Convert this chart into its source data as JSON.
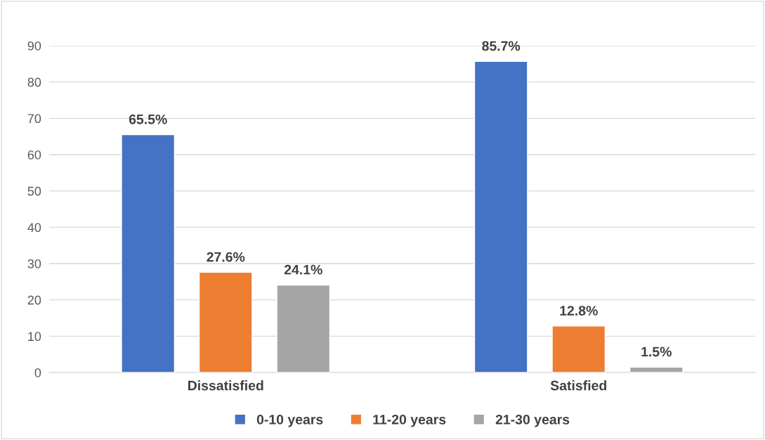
{
  "chart_data": {
    "type": "bar",
    "categories": [
      "Dissatisfied",
      "Satisfied"
    ],
    "series": [
      {
        "name": "0-10 years",
        "color": "#4472c4",
        "values": [
          65.5,
          85.7
        ],
        "value_labels": [
          "65.5%",
          "85.7%"
        ]
      },
      {
        "name": "11-20 years",
        "color": "#ed7d31",
        "values": [
          27.6,
          12.8
        ],
        "value_labels": [
          "27.6%",
          "12.8%"
        ]
      },
      {
        "name": "21-30 years",
        "color": "#a5a5a5",
        "values": [
          24.1,
          1.5
        ],
        "value_labels": [
          "24.1%",
          "1.5%"
        ]
      }
    ],
    "ylim": [
      0,
      90
    ],
    "yticks": [
      0,
      10,
      20,
      30,
      40,
      50,
      60,
      70,
      80,
      90
    ],
    "grid": "y",
    "legend": "bottom"
  }
}
